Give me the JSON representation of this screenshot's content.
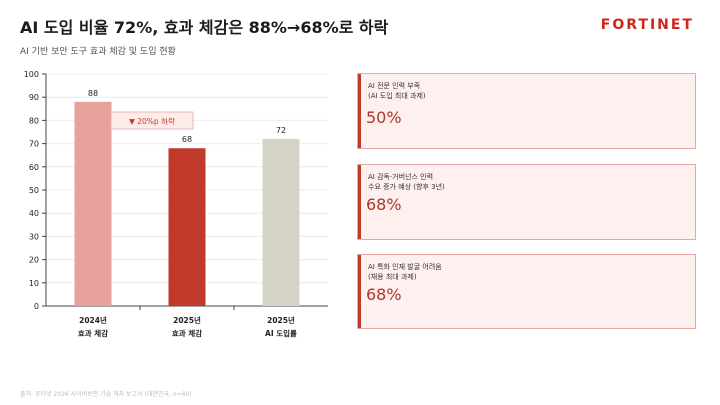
{
  "header": {
    "title": "AI 도입 비율 72%, 효과 체감은 88%→68%로 하락",
    "subtitle": "AI 기반 보안 도구 효과 체감 및 도입 현황",
    "logo_text": "FORTINET"
  },
  "chart_data": {
    "type": "bar",
    "categories": [
      [
        "2024년",
        "효과 체감"
      ],
      [
        "2025년",
        "효과 체감"
      ],
      [
        "2025년",
        "AI 도입률"
      ]
    ],
    "values": [
      88,
      68,
      72
    ],
    "data_labels": [
      "88",
      "68",
      "72"
    ],
    "colors": [
      "#e8a09b",
      "#c0392b",
      "#d4d3c5"
    ],
    "ylim": [
      0,
      100
    ],
    "yticks": [
      0,
      10,
      20,
      30,
      40,
      50,
      60,
      70,
      80,
      90,
      100
    ],
    "grid": true,
    "annotation": {
      "text": "▼ 20%p 하락",
      "color": "#c0392b"
    }
  },
  "cards": [
    {
      "label": "AI 전문 인력 부족\n(AI 도입 최대 과제)",
      "value": "50%"
    },
    {
      "label": "AI 감독·거버넌스 인력\n수요 증가 예상 (향후 3년)",
      "value": "68%"
    },
    {
      "label": "AI 특화 인재 발굴 어려움\n(채용 최대 과제)",
      "value": "68%"
    }
  ],
  "footer": "출처: 포티넷 2026 사이버보안 기술 격차 보고서 (대한민국, n=60)",
  "colors": {
    "accent": "#c0392b",
    "card_bg": "#fdf0ef",
    "card_border": "#e7a8a3"
  }
}
